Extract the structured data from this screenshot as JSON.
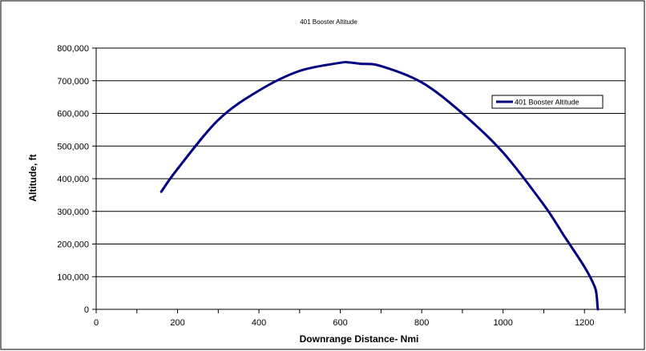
{
  "chart_data": {
    "type": "line",
    "title": "401 Booster Altitude",
    "xlabel": "Downrange Distance- Nmi",
    "ylabel": "Altitude, ft",
    "xlim": [
      0,
      1300
    ],
    "ylim": [
      0,
      800000
    ],
    "x_ticks": [
      0,
      200,
      400,
      600,
      800,
      1000,
      1200
    ],
    "y_ticks": [
      0,
      100000,
      200000,
      300000,
      400000,
      500000,
      600000,
      700000,
      800000
    ],
    "x_tick_labels": [
      "0",
      "200",
      "400",
      "600",
      "800",
      "1000",
      "1200"
    ],
    "y_tick_labels": [
      "0",
      "100,000",
      "200,000",
      "300,000",
      "400,000",
      "500,000",
      "600,000",
      "700,000",
      "800,000"
    ],
    "grid": "horizontal",
    "legend": "right",
    "colors": {
      "series": "#000080",
      "grid": "#000000",
      "frame": "#000000"
    },
    "series": [
      {
        "name": "401 Booster Altitude",
        "x": [
          160,
          200,
          300,
          400,
          500,
          600,
          620,
          650,
          700,
          800,
          900,
          1000,
          1100,
          1150,
          1200,
          1225,
          1230,
          1232,
          1233
        ],
        "y": [
          360000,
          430000,
          580000,
          670000,
          730000,
          755000,
          756000,
          752000,
          745000,
          695000,
          600000,
          480000,
          320000,
          225000,
          130000,
          70000,
          40000,
          10000,
          0
        ]
      }
    ]
  }
}
